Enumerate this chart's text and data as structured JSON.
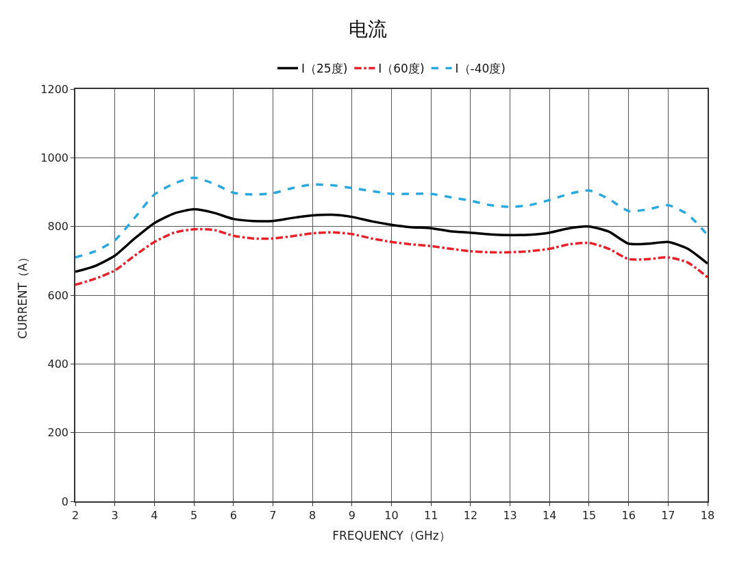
{
  "chart_data": {
    "type": "line",
    "title": "电流",
    "xlabel": "FREQUENCY（GHz）",
    "ylabel": "CURRENT（A）",
    "x": [
      2,
      2.5,
      3,
      3.5,
      4,
      4.5,
      5,
      5.5,
      6,
      6.5,
      7,
      7.5,
      8,
      8.5,
      9,
      9.5,
      10,
      10.5,
      11,
      11.5,
      12,
      12.5,
      13,
      13.5,
      14,
      14.5,
      15,
      15.5,
      16,
      16.5,
      17,
      17.5,
      18
    ],
    "series": [
      {
        "name": "I（25度)",
        "color": "#000000",
        "line_style": "solid",
        "values": [
          668,
          685,
          715,
          765,
          810,
          838,
          850,
          840,
          822,
          816,
          816,
          825,
          832,
          834,
          828,
          815,
          805,
          798,
          795,
          786,
          782,
          777,
          775,
          776,
          782,
          795,
          800,
          785,
          750,
          750,
          755,
          735,
          692
        ]
      },
      {
        "name": "I（60度)",
        "color": "#e8202a",
        "line_style": "dashdot",
        "values": [
          630,
          648,
          672,
          715,
          755,
          782,
          792,
          790,
          773,
          765,
          765,
          772,
          780,
          783,
          778,
          765,
          755,
          748,
          743,
          735,
          728,
          725,
          725,
          728,
          735,
          748,
          752,
          735,
          705,
          705,
          710,
          695,
          652
        ]
      },
      {
        "name": "I（-40度)",
        "color": "#29a8e0",
        "line_style": "dashed",
        "values": [
          710,
          728,
          760,
          825,
          893,
          925,
          942,
          925,
          898,
          893,
          897,
          912,
          922,
          920,
          912,
          903,
          895,
          895,
          895,
          885,
          875,
          862,
          857,
          862,
          877,
          895,
          905,
          880,
          845,
          850,
          862,
          835,
          775
        ]
      }
    ],
    "xlim": [
      2,
      18
    ],
    "xticks": [
      2,
      3,
      4,
      5,
      6,
      7,
      8,
      9,
      10,
      11,
      12,
      13,
      14,
      15,
      16,
      17,
      18
    ],
    "ylim": [
      0,
      1200
    ],
    "yticks": [
      0,
      200,
      400,
      600,
      800,
      1000,
      1200
    ],
    "grid": true,
    "legend": "top",
    "marker": "none"
  }
}
